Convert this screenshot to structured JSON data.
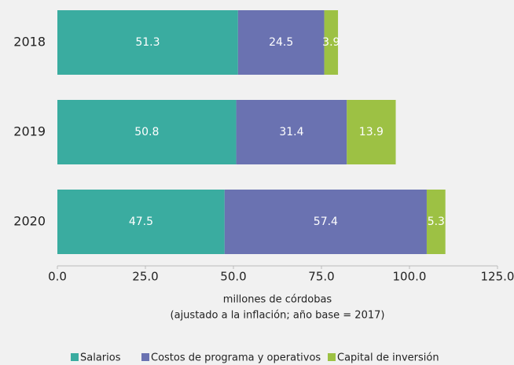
{
  "chart_data": {
    "type": "stacked_barh",
    "categories": [
      "2018",
      "2019",
      "2020"
    ],
    "series": [
      {
        "name": "Salarios",
        "color": "#3aaca0",
        "values": [
          51.3,
          50.8,
          47.5
        ]
      },
      {
        "name": "Costos de programa y operativos",
        "color": "#6a72b1",
        "values": [
          24.5,
          31.4,
          57.4
        ]
      },
      {
        "name": "Capital de inversión",
        "color": "#9dc144",
        "values": [
          3.9,
          13.9,
          5.3
        ]
      }
    ],
    "xlim": [
      0,
      125
    ],
    "xticks": [
      {
        "value": 0,
        "label": "0.0"
      },
      {
        "value": 25,
        "label": "25.0"
      },
      {
        "value": 50,
        "label": "50.0"
      },
      {
        "value": 75,
        "label": "75.0"
      },
      {
        "value": 100,
        "label": "100.0"
      },
      {
        "value": 125,
        "label": "125.0"
      }
    ],
    "xlabel": [
      "millones de córdobas",
      "(ajustado a la inflación; año base = 2017)"
    ],
    "legend": "bottom"
  }
}
